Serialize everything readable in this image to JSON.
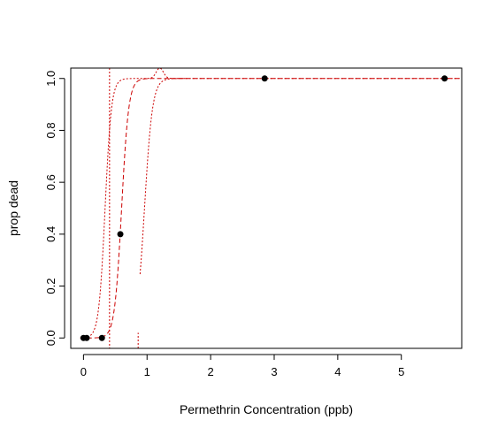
{
  "chart_data": {
    "type": "scatter",
    "xlabel": "Permethrin Concentration (ppb)",
    "ylabel": "prop dead",
    "xlim": [
      -0.2,
      5.95
    ],
    "ylim": [
      -0.04,
      1.04
    ],
    "x_ticks": [
      0,
      1,
      2,
      3,
      4,
      5
    ],
    "y_ticks": [
      0.0,
      0.2,
      0.4,
      0.6,
      0.8,
      1.0
    ],
    "x_tick_labels": [
      "0",
      "1",
      "2",
      "3",
      "4",
      "5"
    ],
    "y_tick_labels": [
      "0.0",
      "0.2",
      "0.4",
      "0.6",
      "0.8",
      "1.0"
    ],
    "grid": false,
    "points": {
      "x": [
        0.0,
        0.05,
        0.29,
        0.58,
        2.85,
        5.68
      ],
      "y": [
        0.0,
        0.0,
        0.0,
        0.4,
        1.0,
        1.0
      ],
      "color": "#000000"
    },
    "fit_curve": {
      "style": "dashed",
      "color": "#cc0000",
      "midpoint": 0.6,
      "slope": 18
    },
    "lower_band": {
      "style": "dotted",
      "color": "#cc0000",
      "midpoint": 0.96,
      "slope": 16,
      "asymptote_x": 0.86
    },
    "upper_band": {
      "style": "dotted",
      "color": "#cc0000",
      "midpoint": 0.34,
      "slope": 20,
      "asymptote_x": 0.41,
      "bump_x": 1.2
    }
  }
}
